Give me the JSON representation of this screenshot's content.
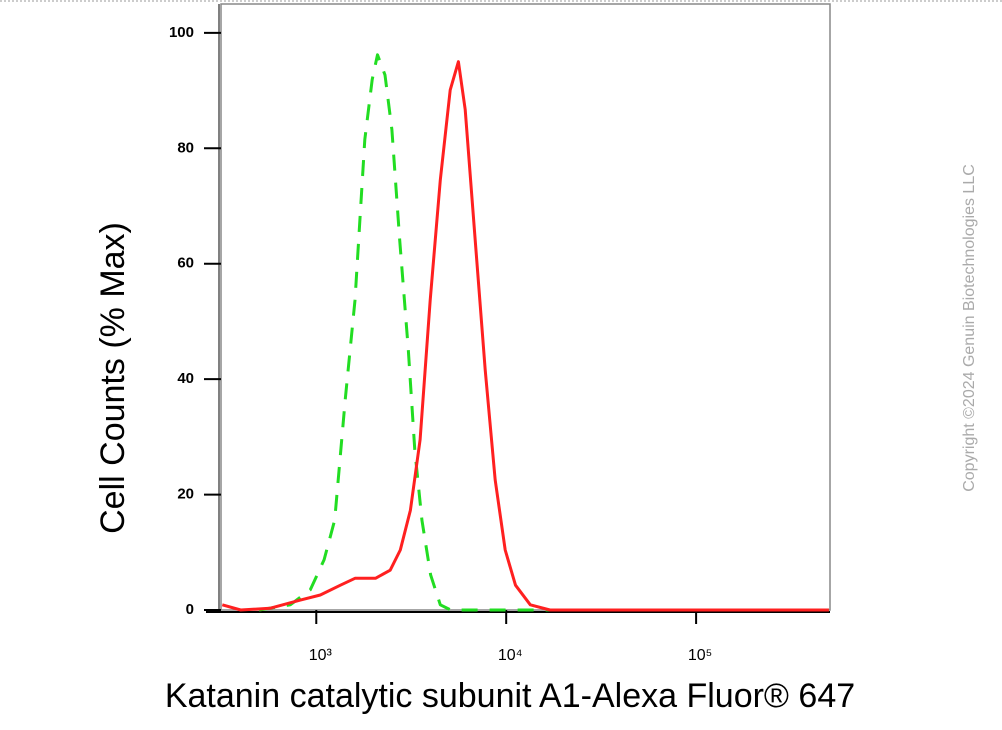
{
  "chart_data": {
    "type": "line",
    "y_label": "Cell Counts (% Max)",
    "x_label": "Katanin catalytic subunit A1-Alexa Fluor® 647",
    "watermark": "Copyright ©2024 Genuin Biotechnologies LLC",
    "x_scale": "log",
    "xlim": [
      315,
      507000
    ],
    "ylim": [
      0,
      105
    ],
    "xticks": [
      {
        "value": 1000,
        "label": "10³"
      },
      {
        "value": 10000,
        "label": "10⁴"
      },
      {
        "value": 100000,
        "label": "10⁵"
      }
    ],
    "yticks": [
      0,
      20,
      40,
      60,
      80,
      100
    ],
    "series": [
      {
        "color": "#22dd22",
        "dash": true,
        "x": [
          500,
          730,
          930,
          1100,
          1250,
          1420,
          1600,
          1800,
          1970,
          2100,
          2300,
          2500,
          2750,
          3050,
          3300,
          3600,
          4000,
          4500,
          5100,
          20000,
          500000
        ],
        "values": [
          0,
          0.9,
          3.5,
          8.7,
          15.6,
          36.4,
          53.7,
          81.5,
          91.9,
          96.2,
          92.7,
          83.2,
          64.1,
          45.1,
          27.7,
          15.6,
          6.1,
          0.9,
          0,
          0,
          0
        ]
      },
      {
        "color": "#ff2020",
        "dash": false,
        "x": [
          320,
          400,
          570,
          820,
          1050,
          1340,
          1600,
          1800,
          2050,
          2450,
          2770,
          3130,
          3520,
          3980,
          4500,
          5070,
          5600,
          6080,
          6870,
          7750,
          8750,
          9880,
          11200,
          13400,
          17000,
          500000
        ],
        "values": [
          0.9,
          0,
          0.3,
          1.7,
          2.6,
          4.3,
          5.5,
          5.5,
          5.5,
          6.9,
          10.4,
          17.3,
          29.5,
          53.7,
          74.5,
          90.1,
          95,
          86.7,
          64.1,
          41.6,
          22.5,
          10.4,
          4.3,
          0.9,
          0,
          0
        ]
      }
    ]
  }
}
